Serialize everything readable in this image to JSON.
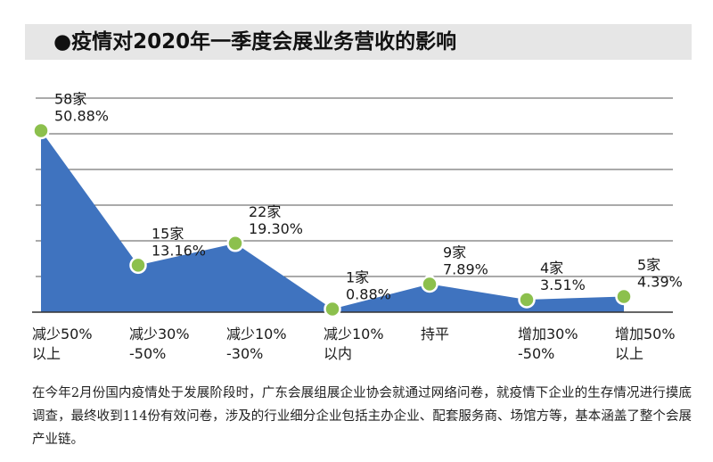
{
  "title": "●疫情对2020年一季度会展业务营收的影响",
  "colors": {
    "area_fill": "#3f73bf",
    "point": "#8cc04d",
    "grid": "#555555",
    "title_bg": "#e6e6e6"
  },
  "chart_data": {
    "type": "area",
    "categories": [
      [
        "减少50%",
        "以上"
      ],
      [
        "减少30%",
        "-50%"
      ],
      [
        "减少10%",
        "-30%"
      ],
      [
        "减少10%",
        "以内"
      ],
      [
        "持平"
      ],
      [
        "增加30%",
        "-50%"
      ],
      [
        "增加50%",
        "以上"
      ]
    ],
    "series": [
      {
        "values": [
          50.88,
          13.16,
          19.3,
          0.88,
          7.89,
          3.51,
          4.39
        ],
        "counts": [
          "58家",
          "15家",
          "22家",
          "1家",
          "9家",
          "4家",
          "5家"
        ],
        "percent_labels": [
          "50.88%",
          "13.16%",
          "19.30%",
          "0.88%",
          "7.89%",
          "3.51%",
          "4.39%"
        ]
      }
    ],
    "ylim": [
      0,
      60
    ],
    "grid": true,
    "xlabel": "",
    "ylabel": ""
  },
  "note": "在今年2月份国内疫情处于发展阶段时，广东会展组展企业协会就通过网络问卷，就疫情下企业的生存情况进行摸底调查，最终收到114份有效问卷，涉及的行业细分企业包括主办企业、配套服务商、场馆方等，基本涵盖了整个会展产业链。"
}
